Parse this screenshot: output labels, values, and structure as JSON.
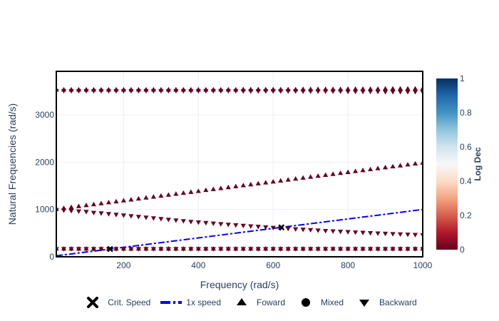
{
  "chart_data": {
    "type": "scatter",
    "xlabel": "Frequency (rad/s)",
    "ylabel": "Natural Frequencies (rad/s)",
    "xlim": [
      20,
      1000
    ],
    "ylim": [
      0,
      3920
    ],
    "xticks": [
      200,
      400,
      600,
      800,
      1000
    ],
    "yticks": [
      0,
      1000,
      2000,
      3000
    ],
    "grid": true,
    "colorbar": {
      "title": "Log Dec",
      "range": [
        0,
        1
      ],
      "ticks": [
        0,
        0.2,
        0.4,
        0.6,
        0.8,
        1
      ],
      "colorscale": [
        "#67001f",
        "#b2182b",
        "#d6604d",
        "#f4a582",
        "#fddbc7",
        "#f7f7f7",
        "#d1e5f0",
        "#92c5de",
        "#4393c3",
        "#2166ac",
        "#053061"
      ]
    },
    "x": [
      20,
      40,
      60,
      80,
      100,
      120,
      140,
      160,
      180,
      200,
      220,
      240,
      260,
      280,
      300,
      320,
      340,
      360,
      380,
      400,
      420,
      440,
      460,
      480,
      500,
      520,
      540,
      560,
      580,
      600,
      620,
      640,
      660,
      680,
      700,
      720,
      740,
      760,
      780,
      800,
      820,
      840,
      860,
      880,
      900,
      920,
      940,
      960,
      980,
      1000
    ],
    "series": [
      {
        "name": "Backward",
        "marker": "triangle-down",
        "log_dec": 0.0,
        "values": [
          164,
          164,
          164,
          164,
          164,
          164,
          164,
          164,
          164,
          164,
          164,
          164,
          164,
          164,
          164,
          164,
          164,
          164,
          164,
          164,
          164,
          164,
          164,
          164,
          164,
          164,
          164,
          164,
          164,
          164,
          164,
          164,
          164,
          164,
          164,
          164,
          164,
          164,
          164,
          164,
          164,
          164,
          164,
          164,
          164,
          164,
          164,
          164,
          164,
          164
        ]
      },
      {
        "name": "Foward",
        "marker": "triangle-up",
        "log_dec": 0.0,
        "values": [
          172,
          172,
          172,
          172,
          172,
          172,
          172,
          172,
          172,
          172,
          172,
          172,
          172,
          172,
          172,
          172,
          172,
          172,
          172,
          172,
          172,
          172,
          172,
          172,
          172,
          172,
          172,
          172,
          172,
          172,
          172,
          172,
          172,
          172,
          172,
          172,
          172,
          172,
          172,
          172,
          172,
          172,
          172,
          172,
          172,
          172,
          172,
          172,
          172,
          172
        ]
      },
      {
        "name": "Backward",
        "marker": "triangle-down",
        "log_dec": 0.0,
        "values": [
          990,
          980,
          970,
          960,
          950,
          930,
          920,
          905,
          890,
          875,
          860,
          845,
          830,
          815,
          800,
          785,
          770,
          755,
          740,
          728,
          716,
          704,
          692,
          680,
          668,
          657,
          646,
          635,
          624,
          614,
          604,
          594,
          584,
          575,
          566,
          557,
          548,
          540,
          532,
          524,
          516,
          509,
          502,
          495,
          488,
          482,
          476,
          470,
          464,
          458
        ]
      },
      {
        "name": "Foward",
        "marker": "triangle-up",
        "log_dec": 0.0,
        "values": [
          1010,
          1030,
          1050,
          1070,
          1090,
          1110,
          1130,
          1150,
          1170,
          1190,
          1210,
          1230,
          1250,
          1270,
          1290,
          1310,
          1330,
          1350,
          1370,
          1390,
          1410,
          1430,
          1450,
          1470,
          1490,
          1510,
          1530,
          1550,
          1570,
          1590,
          1610,
          1630,
          1650,
          1670,
          1690,
          1710,
          1730,
          1750,
          1770,
          1790,
          1810,
          1830,
          1850,
          1870,
          1890,
          1910,
          1930,
          1950,
          1970,
          1990
        ]
      },
      {
        "name": "Backward",
        "marker": "triangle-down",
        "log_dec": 0.0,
        "values": [
          3505,
          3505,
          3505,
          3505,
          3505,
          3505,
          3505,
          3505,
          3505,
          3505,
          3505,
          3505,
          3505,
          3505,
          3505,
          3505,
          3505,
          3505,
          3505,
          3505,
          3505,
          3505,
          3505,
          3505,
          3505,
          3500,
          3500,
          3500,
          3500,
          3500,
          3500,
          3500,
          3500,
          3495,
          3495,
          3495,
          3495,
          3495,
          3495,
          3490,
          3490,
          3490,
          3490,
          3490,
          3485,
          3485,
          3485,
          3485,
          3485,
          3480
        ]
      },
      {
        "name": "Foward",
        "marker": "triangle-up",
        "log_dec": 0.0,
        "values": [
          3535,
          3535,
          3535,
          3535,
          3535,
          3535,
          3535,
          3535,
          3535,
          3535,
          3535,
          3535,
          3535,
          3535,
          3535,
          3535,
          3535,
          3535,
          3535,
          3535,
          3535,
          3535,
          3535,
          3535,
          3535,
          3540,
          3540,
          3540,
          3540,
          3540,
          3540,
          3540,
          3540,
          3545,
          3545,
          3545,
          3545,
          3545,
          3545,
          3550,
          3550,
          3550,
          3550,
          3550,
          3555,
          3555,
          3555,
          3555,
          3555,
          3560
        ]
      }
    ],
    "speed_line": {
      "name": "1x speed",
      "x": [
        20,
        1000
      ],
      "y": [
        20,
        1000
      ],
      "color": "#0000ff"
    },
    "critical_speeds": {
      "name": "Crit. Speed",
      "x": [
        164,
        622
      ],
      "y": [
        164,
        622
      ]
    },
    "legend": {
      "position": "bottom",
      "items": [
        {
          "label": "Crit. Speed",
          "symbol": "x"
        },
        {
          "label": "1x speed",
          "symbol": "dashdot-line"
        },
        {
          "label": "Foward",
          "symbol": "triangle-up"
        },
        {
          "label": "Mixed",
          "symbol": "circle"
        },
        {
          "label": "Backward",
          "symbol": "triangle-down"
        }
      ]
    }
  }
}
